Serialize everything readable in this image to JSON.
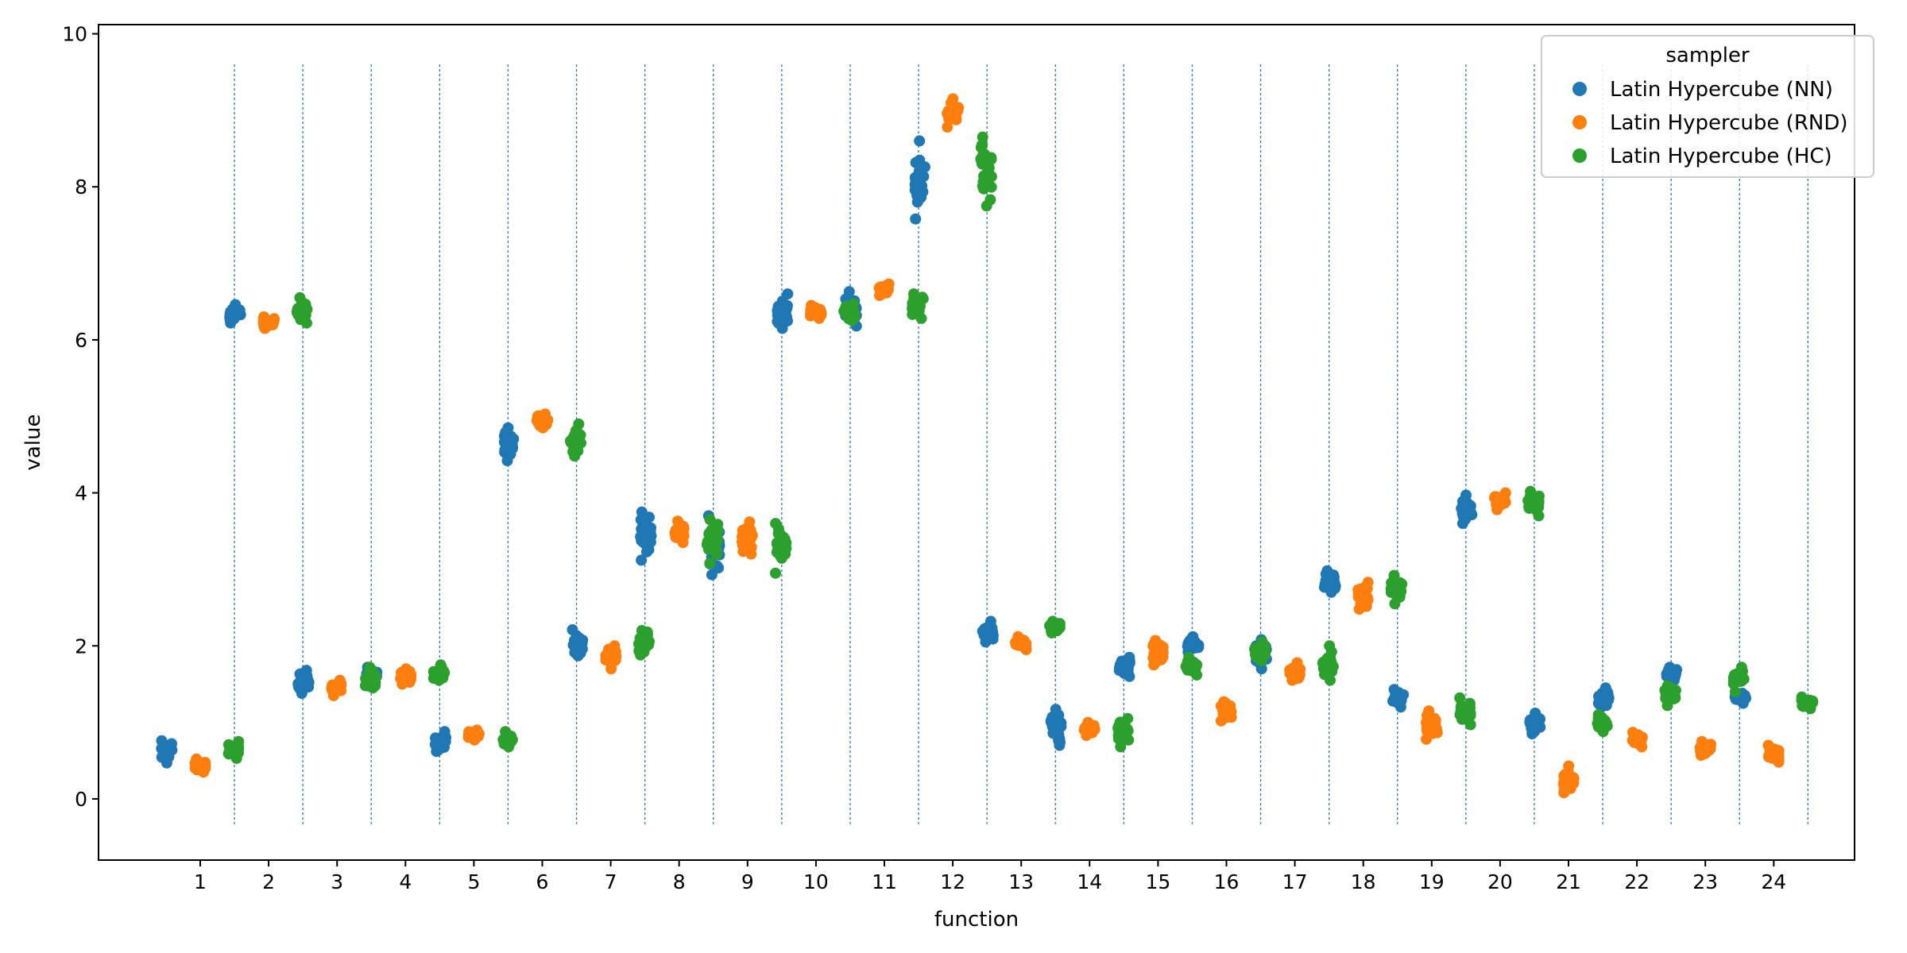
{
  "chart_data": {
    "type": "scatter",
    "xlabel": "function",
    "ylabel": "value",
    "categories": [
      "1",
      "2",
      "3",
      "4",
      "5",
      "6",
      "7",
      "8",
      "9",
      "10",
      "11",
      "12",
      "13",
      "14",
      "15",
      "16",
      "17",
      "18",
      "19",
      "20",
      "21",
      "22",
      "23",
      "24"
    ],
    "yticks": [
      "0",
      "2",
      "4",
      "6",
      "8",
      "10"
    ],
    "ylim": [
      -0.8,
      10.12
    ],
    "grid": false,
    "category_separators": "dotted vertical lines between categories",
    "legend": {
      "title": "sampler",
      "placement": "top-right"
    },
    "series": [
      {
        "name": "Latin Hypercube (NN)",
        "color": "#1f77b4",
        "ranges": [
          [
            0.47,
            0.76
          ],
          [
            6.22,
            6.46
          ],
          [
            1.38,
            1.68
          ],
          [
            1.55,
            1.72
          ],
          [
            0.62,
            0.88
          ],
          [
            4.42,
            4.85
          ],
          [
            1.87,
            2.21
          ],
          [
            3.12,
            3.75
          ],
          [
            2.93,
            3.7
          ],
          [
            6.15,
            6.6
          ],
          [
            6.18,
            6.63
          ],
          [
            7.58,
            8.6
          ],
          [
            2.05,
            2.32
          ],
          [
            0.7,
            1.17
          ],
          [
            1.6,
            1.85
          ],
          [
            1.92,
            2.12
          ],
          [
            1.7,
            2.08
          ],
          [
            2.7,
            2.98
          ],
          [
            1.2,
            1.43
          ],
          [
            3.6,
            3.97
          ],
          [
            0.85,
            1.12
          ],
          [
            1.2,
            1.45
          ],
          [
            1.55,
            1.72
          ],
          [
            1.25,
            1.38
          ]
        ]
      },
      {
        "name": "Latin Hypercube (RND)",
        "color": "#ff7f0e",
        "ranges": [
          [
            0.35,
            0.52
          ],
          [
            6.15,
            6.3
          ],
          [
            1.35,
            1.55
          ],
          [
            1.5,
            1.7
          ],
          [
            0.77,
            0.9
          ],
          [
            4.85,
            5.03
          ],
          [
            1.7,
            2.0
          ],
          [
            3.35,
            3.63
          ],
          [
            3.2,
            3.62
          ],
          [
            6.28,
            6.45
          ],
          [
            6.58,
            6.73
          ],
          [
            8.78,
            9.15
          ],
          [
            1.95,
            2.12
          ],
          [
            0.83,
            1.0
          ],
          [
            1.75,
            2.07
          ],
          [
            1.02,
            1.27
          ],
          [
            1.55,
            1.78
          ],
          [
            2.48,
            2.83
          ],
          [
            0.78,
            1.15
          ],
          [
            3.78,
            4.0
          ],
          [
            0.08,
            0.43
          ],
          [
            0.68,
            0.87
          ],
          [
            0.57,
            0.75
          ],
          [
            0.48,
            0.7
          ]
        ]
      },
      {
        "name": "Latin Hypercube (HC)",
        "color": "#2ca02c",
        "ranges": [
          [
            0.53,
            0.75
          ],
          [
            6.22,
            6.55
          ],
          [
            1.45,
            1.72
          ],
          [
            1.55,
            1.75
          ],
          [
            0.68,
            0.88
          ],
          [
            4.48,
            4.9
          ],
          [
            1.88,
            2.2
          ],
          [
            3.08,
            3.65
          ],
          [
            2.95,
            3.6
          ],
          [
            6.25,
            6.47
          ],
          [
            6.28,
            6.6
          ],
          [
            7.75,
            8.65
          ],
          [
            2.17,
            2.32
          ],
          [
            0.68,
            1.05
          ],
          [
            1.62,
            1.85
          ],
          [
            1.8,
            2.05
          ],
          [
            1.55,
            2.0
          ],
          [
            2.55,
            2.92
          ],
          [
            0.97,
            1.32
          ],
          [
            3.7,
            4.02
          ],
          [
            0.88,
            1.1
          ],
          [
            1.22,
            1.48
          ],
          [
            1.4,
            1.72
          ],
          [
            1.18,
            1.33
          ]
        ]
      }
    ]
  }
}
